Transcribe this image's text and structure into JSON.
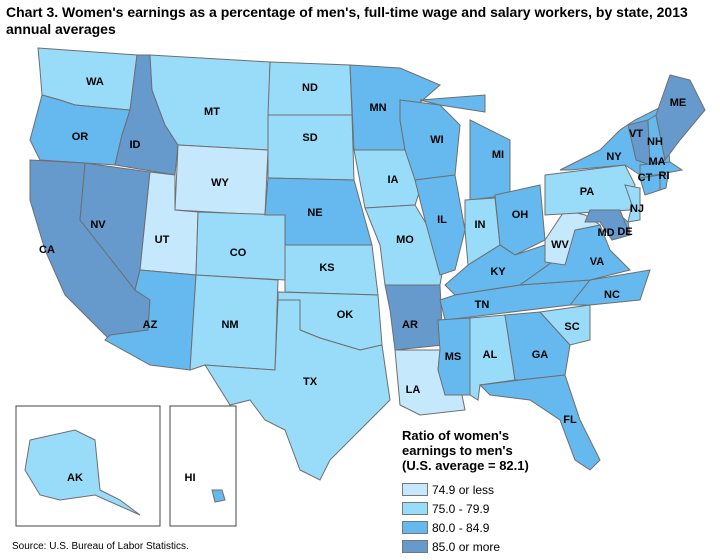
{
  "title": "Chart 3. Women's earnings as a percentage of men's, full-time wage and salary workers, by state, 2013 annual averages",
  "legend": {
    "title_lines": [
      "Ratio of women's",
      "earnings to men's",
      "(U.S. average = 82.1)"
    ],
    "items": [
      {
        "label": "74.9 or less",
        "color": "#c6e8fc"
      },
      {
        "label": "75.0 - 79.9",
        "color": "#99dcfa"
      },
      {
        "label": "80.0 - 84.9",
        "color": "#66b9ee"
      },
      {
        "label": "85.0 or more",
        "color": "#6699cc"
      }
    ]
  },
  "source": "Source: U.S. Bureau of Labor Statistics.",
  "states": [
    {
      "abbr": "WA",
      "cat": 1
    },
    {
      "abbr": "OR",
      "cat": 2
    },
    {
      "abbr": "CA",
      "cat": 3
    },
    {
      "abbr": "NV",
      "cat": 3
    },
    {
      "abbr": "ID",
      "cat": 3
    },
    {
      "abbr": "MT",
      "cat": 1
    },
    {
      "abbr": "WY",
      "cat": 0
    },
    {
      "abbr": "UT",
      "cat": 0
    },
    {
      "abbr": "AZ",
      "cat": 2
    },
    {
      "abbr": "CO",
      "cat": 1
    },
    {
      "abbr": "NM",
      "cat": 1
    },
    {
      "abbr": "ND",
      "cat": 1
    },
    {
      "abbr": "SD",
      "cat": 1
    },
    {
      "abbr": "NE",
      "cat": 2
    },
    {
      "abbr": "KS",
      "cat": 1
    },
    {
      "abbr": "OK",
      "cat": 1
    },
    {
      "abbr": "TX",
      "cat": 1
    },
    {
      "abbr": "MN",
      "cat": 2
    },
    {
      "abbr": "IA",
      "cat": 1
    },
    {
      "abbr": "MO",
      "cat": 1
    },
    {
      "abbr": "AR",
      "cat": 3
    },
    {
      "abbr": "LA",
      "cat": 0
    },
    {
      "abbr": "WI",
      "cat": 2
    },
    {
      "abbr": "IL",
      "cat": 2
    },
    {
      "abbr": "MI",
      "cat": 2
    },
    {
      "abbr": "IN",
      "cat": 1
    },
    {
      "abbr": "OH",
      "cat": 2
    },
    {
      "abbr": "KY",
      "cat": 2
    },
    {
      "abbr": "TN",
      "cat": 2
    },
    {
      "abbr": "MS",
      "cat": 2
    },
    {
      "abbr": "AL",
      "cat": 1
    },
    {
      "abbr": "GA",
      "cat": 2
    },
    {
      "abbr": "FL",
      "cat": 2
    },
    {
      "abbr": "SC",
      "cat": 1
    },
    {
      "abbr": "NC",
      "cat": 2
    },
    {
      "abbr": "VA",
      "cat": 2
    },
    {
      "abbr": "WV",
      "cat": 0
    },
    {
      "abbr": "PA",
      "cat": 1
    },
    {
      "abbr": "NY",
      "cat": 2
    },
    {
      "abbr": "VT",
      "cat": 3
    },
    {
      "abbr": "NH",
      "cat": 2
    },
    {
      "abbr": "ME",
      "cat": 3
    },
    {
      "abbr": "MA",
      "cat": 2
    },
    {
      "abbr": "CT",
      "cat": 2
    },
    {
      "abbr": "RI",
      "cat": 2
    },
    {
      "abbr": "NJ",
      "cat": 1
    },
    {
      "abbr": "DE",
      "cat": 2
    },
    {
      "abbr": "MD",
      "cat": 3
    },
    {
      "abbr": "AK",
      "cat": 1
    },
    {
      "abbr": "HI",
      "cat": 2
    }
  ]
}
